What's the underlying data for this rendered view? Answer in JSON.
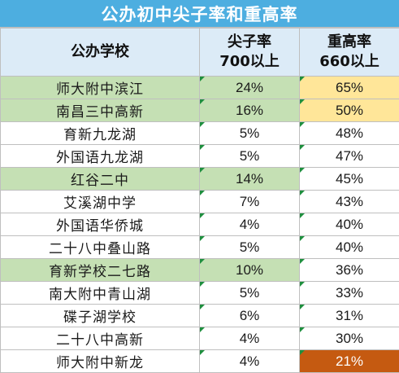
{
  "title": "公办初中尖子率和重高率",
  "headers": {
    "school": "公办学校",
    "rate700_line1": "尖子率",
    "rate700_line2": "700以上",
    "rate660_line1": "重高率",
    "rate660_line2": "660以上"
  },
  "rows": [
    {
      "school": "师大附中滨江",
      "rate700": "24%",
      "rate660": "65%",
      "highlight": true,
      "rate660_color": "yellow"
    },
    {
      "school": "南昌三中高新",
      "rate700": "16%",
      "rate660": "50%",
      "highlight": true,
      "rate660_color": "yellow"
    },
    {
      "school": "育新九龙湖",
      "rate700": "5%",
      "rate660": "48%",
      "highlight": false,
      "rate660_color": "none"
    },
    {
      "school": "外国语九龙湖",
      "rate700": "5%",
      "rate660": "47%",
      "highlight": false,
      "rate660_color": "none"
    },
    {
      "school": "红谷二中",
      "rate700": "14%",
      "rate660": "45%",
      "highlight": true,
      "rate660_color": "none"
    },
    {
      "school": "艾溪湖中学",
      "rate700": "7%",
      "rate660": "43%",
      "highlight": false,
      "rate660_color": "none"
    },
    {
      "school": "外国语华侨城",
      "rate700": "4%",
      "rate660": "40%",
      "highlight": false,
      "rate660_color": "none"
    },
    {
      "school": "二十八中叠山路",
      "rate700": "5%",
      "rate660": "40%",
      "highlight": false,
      "rate660_color": "none"
    },
    {
      "school": "育新学校二七路",
      "rate700": "10%",
      "rate660": "36%",
      "highlight": true,
      "rate660_color": "none"
    },
    {
      "school": "南大附中青山湖",
      "rate700": "5%",
      "rate660": "33%",
      "highlight": false,
      "rate660_color": "none"
    },
    {
      "school": "碟子湖学校",
      "rate700": "6%",
      "rate660": "31%",
      "highlight": false,
      "rate660_color": "none"
    },
    {
      "school": "二十八中高新",
      "rate700": "4%",
      "rate660": "30%",
      "highlight": false,
      "rate660_color": "none"
    },
    {
      "school": "师大附中新龙",
      "rate700": "4%",
      "rate660": "21%",
      "highlight": false,
      "rate660_color": "orange"
    }
  ],
  "colors": {
    "title_bg": "#4daee0",
    "header_bg": "#dcebf7",
    "highlight_green": "#c5e0b4",
    "highlight_yellow": "#ffe699",
    "highlight_orange": "#c55a11"
  }
}
